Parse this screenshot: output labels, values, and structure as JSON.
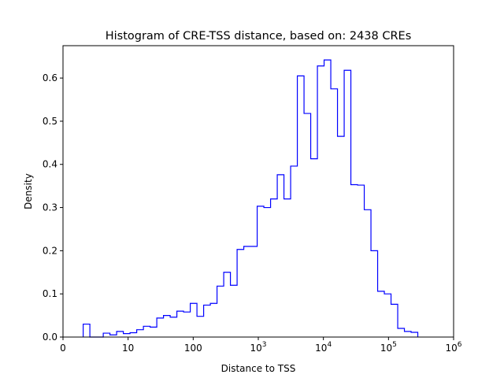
{
  "chart_data": {
    "type": "histogram-step",
    "title": "Histogram of CRE-TSS distance, based on: 2438 CREs",
    "xlabel": "Distance to TSS",
    "ylabel": "Density",
    "xscale": "log10",
    "xlim_log10": [
      0,
      6
    ],
    "ylim": [
      0,
      0.675
    ],
    "xticks": [
      {
        "log10": 0,
        "label": "0",
        "sup": ""
      },
      {
        "log10": 1,
        "label": "10",
        "sup": ""
      },
      {
        "log10": 2,
        "label": "100",
        "sup": ""
      },
      {
        "log10": 3,
        "label": "10",
        "sup": "3"
      },
      {
        "log10": 4,
        "label": "10",
        "sup": "4"
      },
      {
        "log10": 5,
        "label": "10",
        "sup": "5"
      },
      {
        "log10": 6,
        "label": "10",
        "sup": "6"
      }
    ],
    "yticks": [
      {
        "value": 0,
        "label": "0.0"
      },
      {
        "value": 0.1,
        "label": "0.1"
      },
      {
        "value": 0.2,
        "label": "0.2"
      },
      {
        "value": 0.3,
        "label": "0.3"
      },
      {
        "value": 0.4,
        "label": "0.4"
      },
      {
        "value": 0.5,
        "label": "0.5"
      },
      {
        "value": 0.6,
        "label": "0.6"
      }
    ],
    "bin_start_log10": 0.31,
    "bin_end_log10": 5.45,
    "density": [
      0.03,
      0,
      0,
      0.009,
      0.005,
      0.013,
      0.008,
      0.01,
      0.017,
      0.025,
      0.023,
      0.044,
      0.05,
      0.046,
      0.06,
      0.058,
      0.078,
      0.048,
      0.074,
      0.078,
      0.118,
      0.15,
      0.12,
      0.203,
      0.21,
      0.21,
      0.303,
      0.3,
      0.32,
      0.376,
      0.32,
      0.396,
      0.605,
      0.518,
      0.413,
      0.628,
      0.642,
      0.575,
      0.465,
      0.618,
      0.353,
      0.352,
      0.295,
      0.2,
      0.106,
      0.1,
      0.076,
      0.02,
      0.013,
      0.011
    ],
    "color": "#0000ff",
    "grid": false
  }
}
